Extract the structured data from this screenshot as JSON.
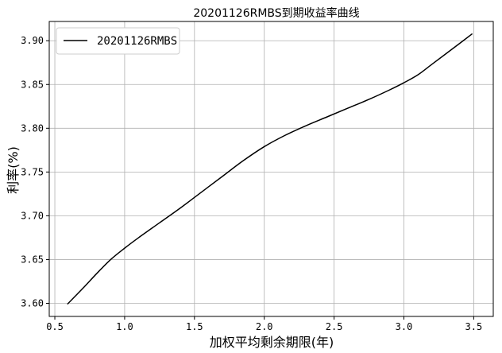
{
  "chart_data": {
    "type": "line",
    "title": "20201126RMBS到期收益率曲线",
    "xlabel": "加权平均剩余期限(年)",
    "ylabel": "利率(%)",
    "xlim": [
      0.46,
      3.64
    ],
    "ylim": [
      3.585,
      3.922
    ],
    "x_ticks": [
      0.5,
      1.0,
      1.5,
      2.0,
      2.5,
      3.0,
      3.5
    ],
    "x_tick_labels": [
      "0.5",
      "1.0",
      "1.5",
      "2.0",
      "2.5",
      "3.0",
      "3.5"
    ],
    "y_ticks": [
      3.6,
      3.65,
      3.7,
      3.75,
      3.8,
      3.85,
      3.9
    ],
    "y_tick_labels": [
      "3.60",
      "3.65",
      "3.70",
      "3.75",
      "3.80",
      "3.85",
      "3.90"
    ],
    "grid": true,
    "legend_position": "top-left",
    "series": [
      {
        "name": "20201126RMBS",
        "color": "#000000",
        "x": [
          0.59,
          0.7,
          0.8,
          0.9,
          1.0,
          1.1,
          1.25,
          1.4,
          1.55,
          1.7,
          1.85,
          2.0,
          2.15,
          2.3,
          2.45,
          2.6,
          2.75,
          2.9,
          3.0,
          3.1,
          3.2,
          3.3,
          3.4,
          3.49
        ],
        "y": [
          3.599,
          3.617,
          3.634,
          3.65,
          3.663,
          3.675,
          3.692,
          3.709,
          3.727,
          3.745,
          3.763,
          3.779,
          3.792,
          3.803,
          3.813,
          3.823,
          3.833,
          3.844,
          3.852,
          3.861,
          3.873,
          3.885,
          3.897,
          3.908
        ]
      }
    ]
  }
}
